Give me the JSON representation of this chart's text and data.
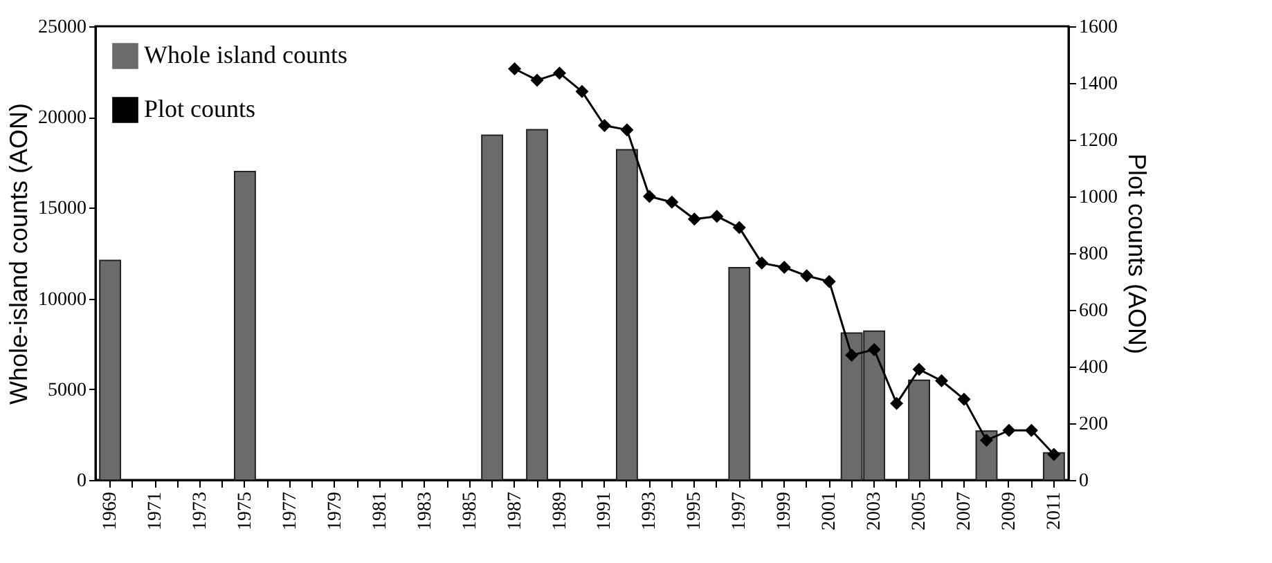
{
  "chart_data": {
    "type": "bar",
    "ylabel": "Whole-island counts (AON)",
    "y2label": "Plot counts (AON)",
    "categories": [
      "1969",
      null,
      "1971",
      null,
      "1973",
      null,
      "1975",
      null,
      "1977",
      null,
      "1979",
      null,
      "1981",
      null,
      "1983",
      null,
      "1985",
      null,
      "1987",
      null,
      "1989",
      null,
      "1991",
      null,
      "1993",
      null,
      "1995",
      null,
      "1997",
      null,
      "1999",
      null,
      "2001",
      null,
      "2003",
      null,
      "2005",
      null,
      "2007",
      null,
      "2009",
      null,
      "2011"
    ],
    "series": [
      {
        "name": "Whole island counts",
        "color": "#6b6b6b",
        "values": [
          12100,
          null,
          null,
          null,
          null,
          null,
          17000,
          null,
          null,
          null,
          null,
          null,
          null,
          null,
          null,
          null,
          null,
          19000,
          null,
          19300,
          null,
          null,
          null,
          18200,
          null,
          null,
          null,
          null,
          11700,
          null,
          null,
          null,
          null,
          8100,
          8200,
          null,
          5500,
          null,
          null,
          2700,
          null,
          null,
          1500
        ]
      },
      {
        "name": "Plot counts",
        "type": "line",
        "axis": "y2",
        "color": "#000000",
        "marker": "diamond",
        "values": [
          null,
          null,
          null,
          null,
          null,
          null,
          null,
          null,
          null,
          null,
          null,
          null,
          null,
          null,
          null,
          null,
          null,
          null,
          1450,
          1410,
          1435,
          1370,
          1250,
          1235,
          1000,
          980,
          920,
          930,
          890,
          765,
          750,
          720,
          700,
          440,
          460,
          270,
          390,
          350,
          285,
          140,
          175,
          175,
          90
        ]
      }
    ],
    "ylim": [
      0,
      25000
    ],
    "yticks": [
      0,
      5000,
      10000,
      15000,
      20000,
      25000
    ],
    "y2lim": [
      0,
      1600
    ],
    "y2ticks": [
      0,
      200,
      400,
      600,
      800,
      1000,
      1200,
      1400,
      1600
    ],
    "legend": "top left",
    "grid": false
  }
}
